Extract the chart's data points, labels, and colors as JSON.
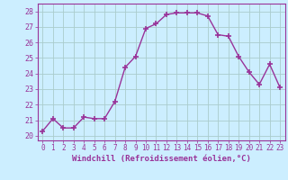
{
  "x": [
    0,
    1,
    2,
    3,
    4,
    5,
    6,
    7,
    8,
    9,
    10,
    11,
    12,
    13,
    14,
    15,
    16,
    17,
    18,
    19,
    20,
    21,
    22,
    23
  ],
  "y": [
    20.3,
    21.1,
    20.5,
    20.5,
    21.2,
    21.1,
    21.1,
    22.2,
    24.4,
    25.1,
    26.9,
    27.2,
    27.8,
    27.9,
    27.9,
    27.9,
    27.7,
    26.5,
    26.4,
    25.1,
    24.1,
    23.3,
    24.6,
    23.1
  ],
  "line_color": "#993399",
  "marker": "+",
  "markersize": 4,
  "markeredgewidth": 1.2,
  "linewidth": 1.0,
  "xlabel": "Windchill (Refroidissement éolien,°C)",
  "xlabel_fontsize": 6.5,
  "ylabel_ticks": [
    20,
    21,
    22,
    23,
    24,
    25,
    26,
    27,
    28
  ],
  "xlim": [
    -0.5,
    23.5
  ],
  "ylim": [
    19.7,
    28.5
  ],
  "bg_color": "#cceeff",
  "grid_color": "#aacccc",
  "ytick_fontsize": 6.0,
  "xtick_fontsize": 5.5
}
